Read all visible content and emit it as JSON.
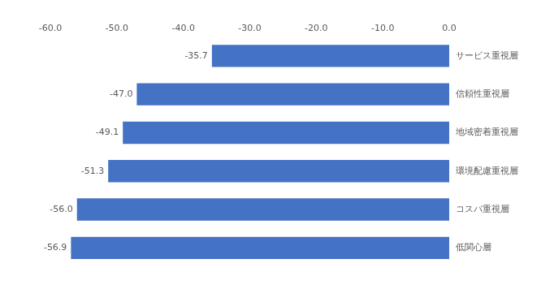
{
  "chart_data": {
    "type": "bar",
    "orientation": "horizontal",
    "categories": [
      "サービス重視層",
      "信頼性重視層",
      "地域密着重視層",
      "環境配慮重視層",
      "コスパ重視層",
      "低関心層"
    ],
    "values": [
      -35.7,
      -47.0,
      -49.1,
      -51.3,
      -56.0,
      -56.9
    ],
    "value_labels": [
      "-35.7",
      "-47.0",
      "-49.1",
      "-51.3",
      "-56.0",
      "-56.9"
    ],
    "color": "#4472c4",
    "xlim": [
      -60,
      0
    ],
    "xticks": [
      {
        "value": -60,
        "label": "-60.0"
      },
      {
        "value": -50,
        "label": "-50.0"
      },
      {
        "value": -40,
        "label": "-40.0"
      },
      {
        "value": -30,
        "label": "-30.0"
      },
      {
        "value": -20,
        "label": "-20.0"
      },
      {
        "value": -10,
        "label": "-10.0"
      },
      {
        "value": 0,
        "label": "0.0"
      }
    ],
    "grid": false,
    "data_labels": true
  }
}
